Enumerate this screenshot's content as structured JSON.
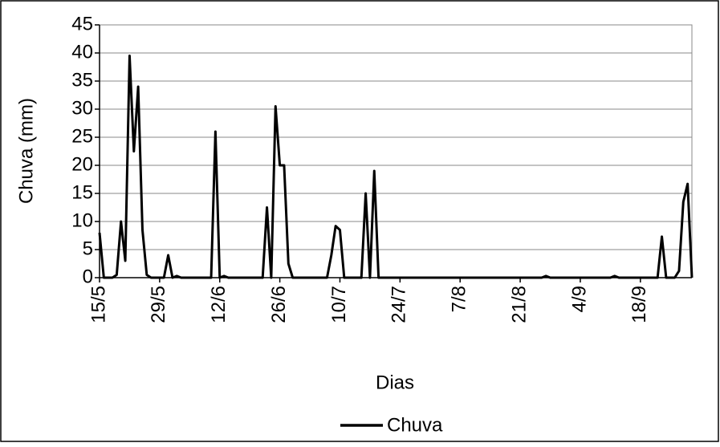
{
  "chart_data": {
    "type": "line",
    "x_label": "Dias",
    "y_label": "Chuva (mm)",
    "categories": [
      "15/5",
      null,
      null,
      null,
      null,
      null,
      null,
      null,
      null,
      null,
      null,
      null,
      null,
      null,
      "29/5",
      null,
      null,
      null,
      null,
      null,
      null,
      null,
      null,
      null,
      null,
      null,
      null,
      null,
      "12/6",
      null,
      null,
      null,
      null,
      null,
      null,
      null,
      null,
      null,
      null,
      null,
      null,
      null,
      "26/6",
      null,
      null,
      null,
      null,
      null,
      null,
      null,
      null,
      null,
      null,
      null,
      null,
      null,
      "10/7",
      null,
      null,
      null,
      null,
      null,
      null,
      null,
      null,
      null,
      null,
      null,
      null,
      null,
      "24/7",
      null,
      null,
      null,
      null,
      null,
      null,
      null,
      null,
      null,
      null,
      null,
      null,
      null,
      "7/8",
      null,
      null,
      null,
      null,
      null,
      null,
      null,
      null,
      null,
      null,
      null,
      null,
      null,
      "21/8",
      null,
      null,
      null,
      null,
      null,
      null,
      null,
      null,
      null,
      null,
      null,
      null,
      null,
      "4/9",
      null,
      null,
      null,
      null,
      null,
      null,
      null,
      null,
      null,
      null,
      null,
      null,
      null,
      "18/9",
      null,
      null,
      null,
      null,
      null,
      null,
      null,
      null,
      null,
      null,
      null,
      null
    ],
    "series": [
      {
        "name": "Chuva",
        "color": "#000000",
        "values": [
          8,
          0,
          0,
          0,
          0.5,
          10,
          3,
          39.5,
          22.5,
          34,
          8.5,
          0.5,
          0,
          0,
          0,
          0,
          4,
          0,
          0.3,
          0,
          0,
          0,
          0,
          0,
          0,
          0,
          0,
          26,
          0,
          0.3,
          0,
          0,
          0,
          0,
          0,
          0,
          0,
          0,
          0,
          12.5,
          0,
          30.5,
          20,
          20,
          2.5,
          0,
          0,
          0,
          0,
          0,
          0,
          0,
          0,
          0,
          4,
          9.2,
          8.5,
          0,
          0,
          0,
          0,
          0,
          15,
          0,
          19,
          0,
          0,
          0,
          0,
          0,
          0,
          0,
          0,
          0,
          0,
          0,
          0,
          0,
          0,
          0,
          0,
          0,
          0,
          0,
          0,
          0,
          0,
          0,
          0,
          0,
          0,
          0,
          0,
          0,
          0,
          0,
          0,
          0,
          0,
          0,
          0,
          0,
          0,
          0,
          0.3,
          0,
          0,
          0,
          0,
          0,
          0,
          0,
          0,
          0,
          0,
          0,
          0,
          0,
          0,
          0,
          0.3,
          0,
          0,
          0,
          0,
          0,
          0,
          0,
          0,
          0,
          0,
          7.3,
          0,
          0,
          0,
          1.2,
          13.5,
          16.7,
          0
        ]
      }
    ],
    "ylim": [
      0,
      45
    ],
    "yticks": [
      0,
      5,
      10,
      15,
      20,
      25,
      30,
      35,
      40,
      45
    ],
    "grid": true
  }
}
